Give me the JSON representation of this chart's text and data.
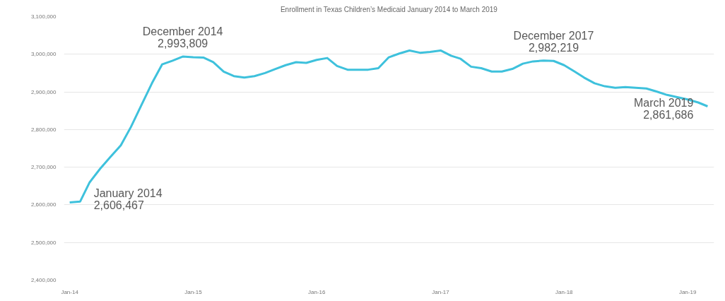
{
  "chart_data": {
    "type": "line",
    "title": "Enrollment in Texas Children’s Medicaid January 2014 to March 2019",
    "x": [
      "2014-01",
      "2014-02",
      "2014-03",
      "2014-04",
      "2014-05",
      "2014-06",
      "2014-07",
      "2014-08",
      "2014-09",
      "2014-10",
      "2014-11",
      "2014-12",
      "2015-01",
      "2015-02",
      "2015-03",
      "2015-04",
      "2015-05",
      "2015-06",
      "2015-07",
      "2015-08",
      "2015-09",
      "2015-10",
      "2015-11",
      "2015-12",
      "2016-01",
      "2016-02",
      "2016-03",
      "2016-04",
      "2016-05",
      "2016-06",
      "2016-07",
      "2016-08",
      "2016-09",
      "2016-10",
      "2016-11",
      "2016-12",
      "2017-01",
      "2017-02",
      "2017-03",
      "2017-04",
      "2017-05",
      "2017-06",
      "2017-07",
      "2017-08",
      "2017-09",
      "2017-10",
      "2017-11",
      "2017-12",
      "2018-01",
      "2018-02",
      "2018-03",
      "2018-04",
      "2018-05",
      "2018-06",
      "2018-07",
      "2018-08",
      "2018-09",
      "2018-10",
      "2018-11",
      "2018-12",
      "2019-01",
      "2019-02",
      "2019-03"
    ],
    "series": [
      {
        "color": "#3ec1dc",
        "values": [
          2606467,
          2609000,
          2660000,
          2696000,
          2727000,
          2758000,
          2807000,
          2865000,
          2923000,
          2973000,
          2983000,
          2993809,
          2992000,
          2991000,
          2979000,
          2954000,
          2942000,
          2938000,
          2942000,
          2950000,
          2961000,
          2971000,
          2979000,
          2977000,
          2985000,
          2990000,
          2969000,
          2959000,
          2959000,
          2959000,
          2963000,
          2992000,
          3002000,
          3010000,
          3004000,
          3006000,
          3010000,
          2996000,
          2988000,
          2967000,
          2963000,
          2954000,
          2954000,
          2961000,
          2975000,
          2981000,
          2983000,
          2982219,
          2971000,
          2954000,
          2938000,
          2923000,
          2915000,
          2911000,
          2913000,
          2911000,
          2909000,
          2901000,
          2892000,
          2886000,
          2880000,
          2872000,
          2861686
        ]
      }
    ],
    "xlim": [
      "2013-12-15",
      "2019-03-20"
    ],
    "xticks": [
      {
        "value": "2014-01",
        "label": "Jan-14"
      },
      {
        "value": "2015-01",
        "label": "Jan-15"
      },
      {
        "value": "2016-01",
        "label": "Jan-16"
      },
      {
        "value": "2017-01",
        "label": "Jan-17"
      },
      {
        "value": "2018-01",
        "label": "Jan-18"
      },
      {
        "value": "2019-01",
        "label": "Jan-19"
      }
    ],
    "ylim": [
      2400000,
      3100000
    ],
    "yticks": [
      {
        "value": 2400000,
        "label": "2,400,000"
      },
      {
        "value": 2500000,
        "label": "2,500,000"
      },
      {
        "value": 2600000,
        "label": "2,600,000"
      },
      {
        "value": 2700000,
        "label": "2,700,000"
      },
      {
        "value": 2800000,
        "label": "2,800,000"
      },
      {
        "value": 2900000,
        "label": "2,900,000"
      },
      {
        "value": 3000000,
        "label": "3,000,000"
      },
      {
        "value": 3100000,
        "label": "3,100,000"
      }
    ],
    "grid": "y",
    "marker": "none",
    "line_style": "solid",
    "annotations": [
      {
        "text": "January 2014\n2,606,467",
        "x": "2014-01",
        "y": 2606467
      },
      {
        "text": "December 2014\n2,993,809",
        "x": "2014-12",
        "y": 2993809
      },
      {
        "text": "December 2017\n2,982,219",
        "x": "2017-12",
        "y": 2982219
      },
      {
        "text": "March 2019\n2,861,686",
        "x": "2019-03",
        "y": 2861686
      }
    ]
  }
}
